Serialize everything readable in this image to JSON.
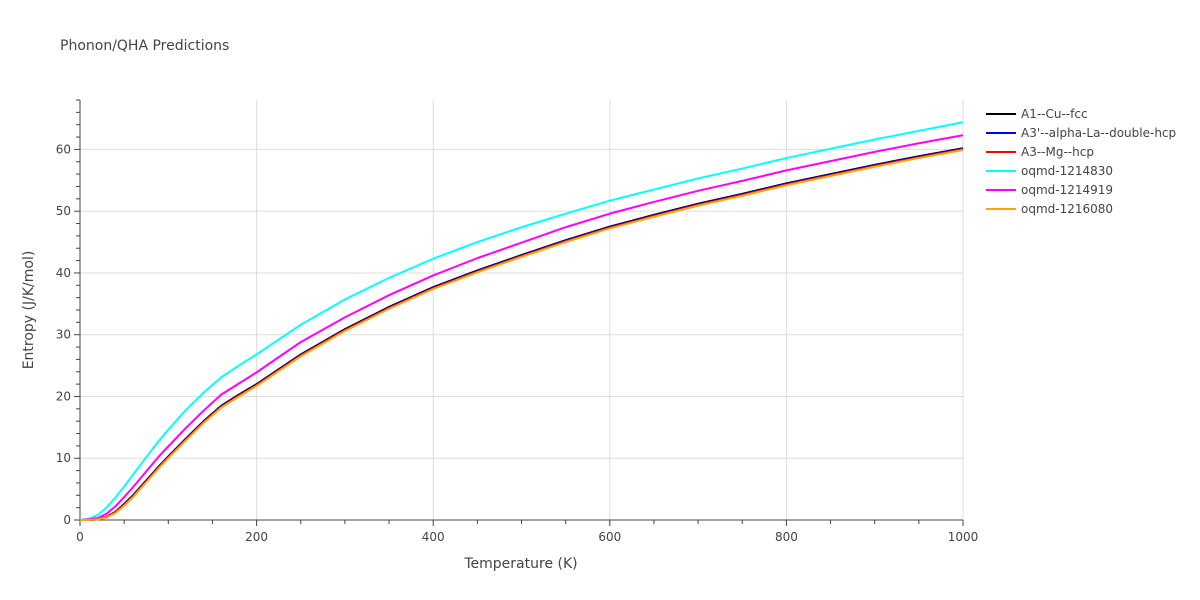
{
  "chart_data": {
    "type": "line",
    "title": "Phonon/QHA Predictions",
    "xlabel": "Temperature (K)",
    "ylabel": "Entropy (J/K/mol)",
    "xlim": [
      0,
      1000
    ],
    "ylim": [
      0,
      68
    ],
    "xticks": [
      0,
      200,
      400,
      600,
      800,
      1000
    ],
    "yticks": [
      0,
      10,
      20,
      30,
      40,
      50,
      60
    ],
    "grid": true,
    "legend_position": "top-right",
    "x": [
      0,
      10,
      20,
      30,
      40,
      50,
      60,
      70,
      80,
      90,
      100,
      120,
      140,
      160,
      180,
      200,
      250,
      300,
      350,
      400,
      450,
      500,
      550,
      600,
      650,
      700,
      750,
      800,
      850,
      900,
      950,
      1000
    ],
    "series": [
      {
        "name": "A1--Cu--fcc",
        "color": "#000000",
        "values": [
          0,
          0.0,
          0.1,
          0.5,
          1.3,
          2.6,
          4.0,
          5.6,
          7.2,
          8.8,
          10.3,
          13.2,
          16.0,
          18.5,
          20.3,
          22.0,
          26.8,
          30.9,
          34.5,
          37.7,
          40.4,
          42.9,
          45.3,
          47.5,
          49.4,
          51.2,
          52.8,
          54.5,
          56.0,
          57.5,
          58.9,
          60.2
        ]
      },
      {
        "name": "A3'--alpha-La--double-hcp",
        "color": "#0000ff",
        "values": [
          0,
          0.0,
          0.1,
          0.5,
          1.3,
          2.5,
          3.9,
          5.5,
          7.1,
          8.7,
          10.2,
          13.1,
          15.9,
          18.4,
          20.2,
          21.9,
          26.7,
          30.8,
          34.4,
          37.6,
          40.3,
          42.8,
          45.2,
          47.4,
          49.3,
          51.1,
          52.7,
          54.4,
          55.9,
          57.4,
          58.8,
          60.1
        ]
      },
      {
        "name": "A3--Mg--hcp",
        "color": "#ff0000",
        "values": [
          0,
          0.0,
          0.1,
          0.5,
          1.2,
          2.4,
          3.8,
          5.4,
          7.0,
          8.6,
          10.1,
          13.0,
          15.8,
          18.3,
          20.1,
          21.8,
          26.6,
          30.7,
          34.3,
          37.5,
          40.2,
          42.7,
          45.1,
          47.3,
          49.2,
          51.0,
          52.6,
          54.3,
          55.8,
          57.3,
          58.7,
          60.0
        ]
      },
      {
        "name": "oqmd-1214830",
        "color": "#00ffff",
        "values": [
          0,
          0.2,
          0.8,
          2.0,
          3.6,
          5.4,
          7.3,
          9.2,
          11.1,
          12.9,
          14.6,
          17.8,
          20.6,
          23.1,
          25.0,
          26.8,
          31.6,
          35.7,
          39.2,
          42.3,
          45.0,
          47.4,
          49.6,
          51.7,
          53.5,
          55.3,
          56.9,
          58.6,
          60.1,
          61.6,
          63.0,
          64.4
        ]
      },
      {
        "name": "oqmd-1214919",
        "color": "#ff00ff",
        "values": [
          0,
          0.1,
          0.3,
          1.0,
          2.2,
          3.7,
          5.3,
          7.0,
          8.7,
          10.4,
          11.9,
          14.9,
          17.7,
          20.3,
          22.1,
          23.9,
          28.8,
          32.8,
          36.4,
          39.6,
          42.4,
          44.9,
          47.4,
          49.6,
          51.5,
          53.3,
          54.9,
          56.6,
          58.1,
          59.6,
          61.0,
          62.3
        ]
      },
      {
        "name": "oqmd-1216080",
        "color": "#ffa500",
        "values": [
          0,
          0.0,
          0.1,
          0.4,
          1.1,
          2.3,
          3.7,
          5.3,
          6.9,
          8.5,
          10.0,
          12.9,
          15.7,
          18.2,
          20.0,
          21.7,
          26.5,
          30.6,
          34.2,
          37.4,
          40.1,
          42.6,
          45.0,
          47.2,
          49.1,
          50.9,
          52.5,
          54.2,
          55.7,
          57.2,
          58.6,
          59.9
        ]
      }
    ]
  }
}
